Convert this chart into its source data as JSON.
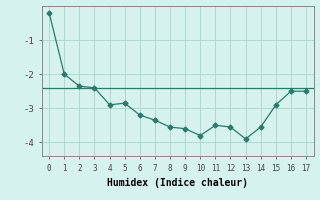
{
  "x": [
    0,
    1,
    2,
    3,
    4,
    5,
    6,
    7,
    8,
    9,
    10,
    11,
    12,
    13,
    14,
    15,
    16,
    17
  ],
  "y": [
    -0.2,
    -2.0,
    -2.35,
    -2.4,
    -2.9,
    -2.85,
    -3.2,
    -3.35,
    -3.55,
    -3.6,
    -3.8,
    -3.5,
    -3.55,
    -3.9,
    -3.55,
    -2.9,
    -2.5,
    -2.5
  ],
  "hline_y": -2.4,
  "line_color": "#2a7a6a",
  "marker": "D",
  "marker_size": 2.5,
  "bg_color": "#d5f2ee",
  "grid_color": "#b0d8d0",
  "xlabel": "Humidex (Indice chaleur)",
  "yticks": [
    -4,
    -3,
    -2,
    -1
  ],
  "xticks": [
    0,
    1,
    2,
    3,
    4,
    5,
    6,
    7,
    8,
    9,
    10,
    11,
    12,
    13,
    14,
    15,
    16,
    17
  ],
  "xlim": [
    -0.5,
    17.5
  ],
  "ylim": [
    -4.4,
    -0.0
  ]
}
